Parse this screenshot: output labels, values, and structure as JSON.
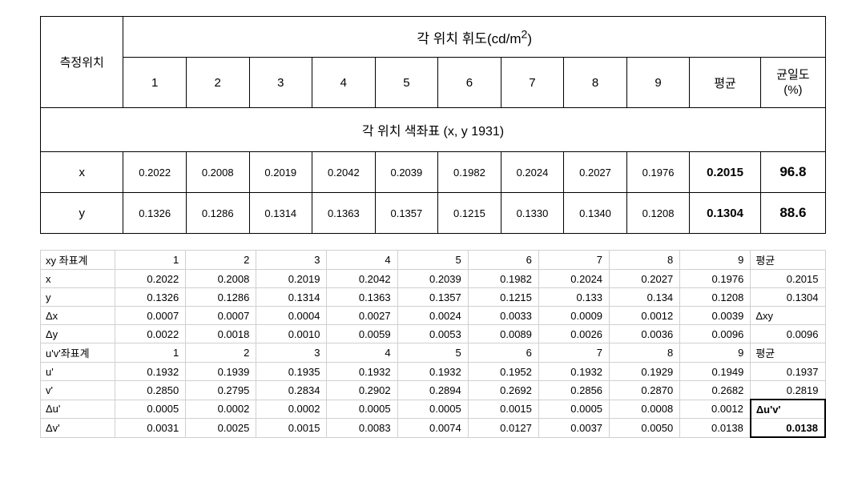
{
  "top": {
    "measurePos": "측정위치",
    "superHeader": "각 위치 휘도(cd/m²)",
    "cols": [
      "1",
      "2",
      "3",
      "4",
      "5",
      "6",
      "7",
      "8",
      "9"
    ],
    "avg": "평균",
    "uniformity": "균일도\n(%)",
    "sectionHeader": "각  위치  색좌표  (x,  y  1931)",
    "xLabel": "x",
    "yLabel": "y",
    "xRow": [
      "0.2022",
      "0.2008",
      "0.2019",
      "0.2042",
      "0.2039",
      "0.1982",
      "0.2024",
      "0.2027",
      "0.1976"
    ],
    "xAvg": "0.2015",
    "xUniform": "96.8",
    "yRow": [
      "0.1326",
      "0.1286",
      "0.1314",
      "0.1363",
      "0.1357",
      "0.1215",
      "0.1330",
      "0.1340",
      "0.1208"
    ],
    "yAvg": "0.1304",
    "yUniform": "88.6"
  },
  "bottom": {
    "rows": [
      {
        "label": "xy 좌표계",
        "cells": [
          "1",
          "2",
          "3",
          "4",
          "5",
          "6",
          "7",
          "8",
          "9"
        ],
        "last": "평균",
        "lastIsLabel": true
      },
      {
        "label": "x",
        "cells": [
          "0.2022",
          "0.2008",
          "0.2019",
          "0.2042",
          "0.2039",
          "0.1982",
          "0.2024",
          "0.2027",
          "0.1976"
        ],
        "last": "0.2015"
      },
      {
        "label": "y",
        "cells": [
          "0.1326",
          "0.1286",
          "0.1314",
          "0.1363",
          "0.1357",
          "0.1215",
          "0.133",
          "0.134",
          "0.1208"
        ],
        "last": "0.1304"
      },
      {
        "label": "Δx",
        "cells": [
          "0.0007",
          "0.0007",
          "0.0004",
          "0.0027",
          "0.0024",
          "0.0033",
          "0.0009",
          "0.0012",
          "0.0039"
        ],
        "last": "Δxy",
        "lastIsLabel": true
      },
      {
        "label": "Δy",
        "cells": [
          "0.0022",
          "0.0018",
          "0.0010",
          "0.0059",
          "0.0053",
          "0.0089",
          "0.0026",
          "0.0036",
          "0.0096"
        ],
        "last": "0.0096"
      },
      {
        "label": "u'v'좌표계",
        "cells": [
          "1",
          "2",
          "3",
          "4",
          "5",
          "6",
          "7",
          "8",
          "9"
        ],
        "last": "평균",
        "lastIsLabel": true
      },
      {
        "label": "u'",
        "cells": [
          "0.1932",
          "0.1939",
          "0.1935",
          "0.1932",
          "0.1932",
          "0.1952",
          "0.1932",
          "0.1929",
          "0.1949"
        ],
        "last": "0.1937"
      },
      {
        "label": "v'",
        "cells": [
          "0.2850",
          "0.2795",
          "0.2834",
          "0.2902",
          "0.2894",
          "0.2692",
          "0.2856",
          "0.2870",
          "0.2682"
        ],
        "last": "0.2819"
      },
      {
        "label": "Δu'",
        "cells": [
          "0.0005",
          "0.0002",
          "0.0002",
          "0.0005",
          "0.0005",
          "0.0015",
          "0.0005",
          "0.0008",
          "0.0012"
        ],
        "last": "Δu'v'",
        "lastIsLabel": true,
        "boxTop": true
      },
      {
        "label": "Δv'",
        "cells": [
          "0.0031",
          "0.0025",
          "0.0015",
          "0.0083",
          "0.0074",
          "0.0127",
          "0.0037",
          "0.0050",
          "0.0138"
        ],
        "last": "0.0138",
        "boxBottom": true
      }
    ]
  }
}
